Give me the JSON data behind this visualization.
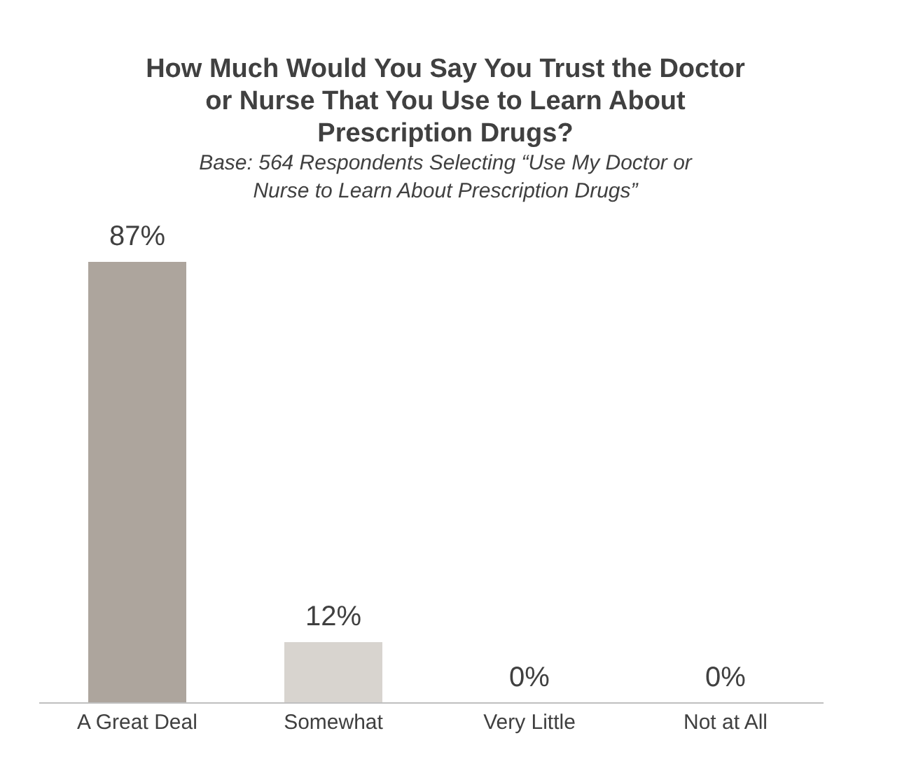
{
  "chart_data": {
    "type": "bar",
    "title": "How Much Would You Say You Trust the Doctor or Nurse That You Use to Learn About Prescription Drugs?",
    "subtitle": "Base: 564 Respondents Selecting “Use My Doctor or Nurse to Learn About Prescription Drugs”",
    "categories": [
      "A Great Deal",
      "Somewhat",
      "Very Little",
      "Not at All"
    ],
    "values": [
      87,
      12,
      0,
      0
    ],
    "colors": [
      "#ada59d",
      "#d8d4cf",
      "#d8d4cf",
      "#d8d4cf"
    ],
    "value_labels": [
      "87%",
      "12%",
      "0%",
      "0%"
    ],
    "grid": false
  }
}
